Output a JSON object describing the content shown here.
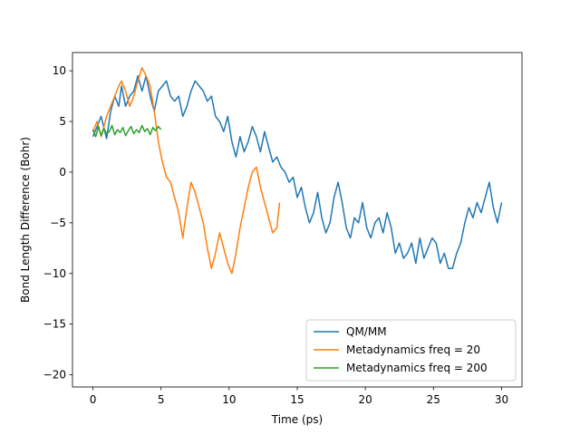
{
  "chart_data": {
    "type": "line",
    "title": "",
    "xlabel": "Time (ps)",
    "ylabel": "Bond Length Difference (Bohr)",
    "xlim": [
      -1.5,
      31.5
    ],
    "ylim": [
      -21.2,
      11.8
    ],
    "xticks": [
      0,
      5,
      10,
      15,
      20,
      25,
      30
    ],
    "yticks": [
      -20,
      -15,
      -10,
      -5,
      0,
      5,
      10
    ],
    "grid": false,
    "legend_position": "lower-right",
    "series": [
      {
        "name": "QM/MM",
        "color": "#1f77b4",
        "x": [
          0,
          0.3,
          0.6,
          1.0,
          1.3,
          1.6,
          1.9,
          2.1,
          2.4,
          2.7,
          3.0,
          3.3,
          3.6,
          3.9,
          4.2,
          4.5,
          4.8,
          5.1,
          5.4,
          5.7,
          6.0,
          6.3,
          6.6,
          6.9,
          7.2,
          7.5,
          7.8,
          8.1,
          8.4,
          8.7,
          9.0,
          9.3,
          9.6,
          9.9,
          10.2,
          10.5,
          10.8,
          11.1,
          11.4,
          11.7,
          12.0,
          12.3,
          12.6,
          12.9,
          13.2,
          13.5,
          13.8,
          14.1,
          14.4,
          14.7,
          15.0,
          15.3,
          15.6,
          15.9,
          16.2,
          16.5,
          16.8,
          17.1,
          17.4,
          17.7,
          18.0,
          18.3,
          18.6,
          18.9,
          19.2,
          19.5,
          19.8,
          20.1,
          20.4,
          20.7,
          21.0,
          21.3,
          21.6,
          21.9,
          22.2,
          22.5,
          22.8,
          23.1,
          23.4,
          23.7,
          24.0,
          24.3,
          24.6,
          24.9,
          25.2,
          25.5,
          25.8,
          26.1,
          26.4,
          26.7,
          27.0,
          27.3,
          27.6,
          27.9,
          28.2,
          28.5,
          28.8,
          29.1,
          29.4,
          29.7,
          30.0
        ],
        "y": [
          3.5,
          4.5,
          5.5,
          3.3,
          6.0,
          7.5,
          6.5,
          8.5,
          6.5,
          7.5,
          8.0,
          9.5,
          8.0,
          9.5,
          7.5,
          6.0,
          8.0,
          8.5,
          9.0,
          7.5,
          7.0,
          7.5,
          5.5,
          6.5,
          8.0,
          9.0,
          8.5,
          8.0,
          7.0,
          7.5,
          5.5,
          5.0,
          4.0,
          5.5,
          3.0,
          1.5,
          3.5,
          2.0,
          3.0,
          4.5,
          3.5,
          2.0,
          4.0,
          2.5,
          1.0,
          1.5,
          0.5,
          0.0,
          -1.0,
          -0.5,
          -2.5,
          -1.5,
          -3.5,
          -5.0,
          -4.0,
          -2.0,
          -4.5,
          -6.0,
          -5.0,
          -2.5,
          -1.0,
          -3.0,
          -5.5,
          -6.5,
          -4.5,
          -5.0,
          -3.0,
          -5.5,
          -6.5,
          -5.0,
          -4.5,
          -6.0,
          -4.0,
          -5.5,
          -8.0,
          -7.0,
          -8.5,
          -8.0,
          -7.0,
          -9.0,
          -6.5,
          -8.5,
          -7.5,
          -6.5,
          -7.0,
          -9.0,
          -8.0,
          -9.5,
          -9.5,
          -8.0,
          -7.0,
          -5.0,
          -3.5,
          -4.5,
          -3.0,
          -4.0,
          -2.5,
          -1.0,
          -3.5,
          -5.0,
          -3.0
        ]
      },
      {
        "name": "Metadynamics freq = 20",
        "color": "#ff7f0e",
        "x": [
          0,
          0.3,
          0.6,
          1.0,
          1.3,
          1.6,
          1.9,
          2.1,
          2.4,
          2.7,
          3.0,
          3.3,
          3.6,
          3.9,
          4.2,
          4.5,
          4.8,
          5.1,
          5.4,
          5.7,
          6.0,
          6.3,
          6.6,
          6.9,
          7.2,
          7.5,
          7.8,
          8.1,
          8.4,
          8.7,
          9.0,
          9.3,
          9.6,
          9.9,
          10.2,
          10.5,
          10.8,
          11.1,
          11.4,
          11.7,
          12.0,
          12.3,
          12.6,
          12.9,
          13.2,
          13.5,
          13.7
        ],
        "y": [
          4.0,
          5.0,
          3.5,
          5.5,
          6.5,
          7.5,
          8.5,
          9.0,
          8.0,
          6.5,
          7.5,
          9.0,
          10.3,
          9.5,
          8.5,
          6.0,
          3.0,
          1.0,
          -0.5,
          -1.0,
          -2.5,
          -4.0,
          -6.5,
          -3.5,
          -1.0,
          -2.0,
          -3.5,
          -5.0,
          -7.5,
          -9.5,
          -8.0,
          -6.0,
          -7.5,
          -9.0,
          -10.0,
          -8.0,
          -5.5,
          -3.5,
          -1.5,
          0.0,
          0.5,
          -1.5,
          -3.0,
          -4.5,
          -6.0,
          -5.5,
          -3.0
        ]
      },
      {
        "name": "Metadynamics freq = 200",
        "color": "#2ca02c",
        "x": [
          0,
          0.2,
          0.4,
          0.6,
          0.8,
          1.0,
          1.2,
          1.4,
          1.6,
          1.8,
          2.0,
          2.2,
          2.4,
          2.6,
          2.8,
          3.0,
          3.2,
          3.4,
          3.6,
          3.8,
          4.0,
          4.2,
          4.4,
          4.6,
          4.8,
          5.0
        ],
        "y": [
          4.2,
          3.5,
          4.5,
          3.6,
          4.3,
          3.8,
          4.0,
          4.6,
          3.7,
          4.2,
          3.9,
          4.4,
          3.6,
          4.1,
          4.5,
          3.8,
          4.2,
          3.9,
          4.6,
          4.0,
          4.3,
          3.7,
          4.4,
          4.1,
          4.5,
          4.2
        ]
      }
    ]
  }
}
